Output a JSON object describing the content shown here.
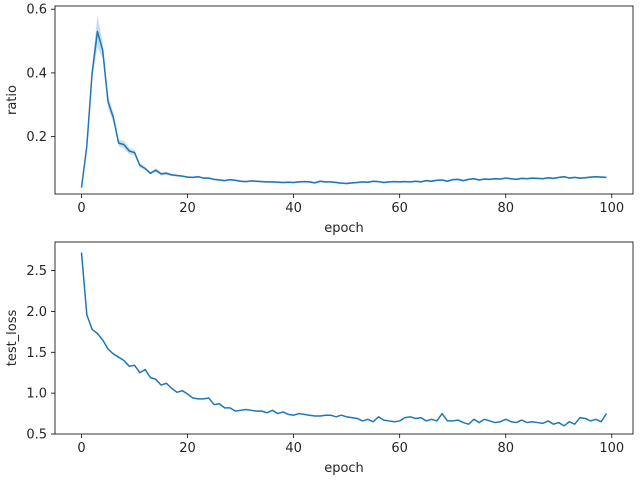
{
  "chart_data": [
    {
      "type": "line",
      "xlabel": "epoch",
      "ylabel": "ratio",
      "xlim": [
        -5,
        104
      ],
      "ylim": [
        0.02,
        0.61
      ],
      "xticks": [
        0,
        20,
        40,
        60,
        80,
        100
      ],
      "yticks": [
        0.2,
        0.4,
        0.6
      ],
      "ytick_labels": [
        "0.2",
        "0.4",
        "0.6"
      ],
      "grid": false,
      "legend": "none",
      "color": "#1f77b4",
      "band_color": "#1f77b4",
      "x": [
        0,
        1,
        2,
        3,
        4,
        5,
        6,
        7,
        8,
        9,
        10,
        11,
        12,
        13,
        14,
        15,
        16,
        17,
        18,
        19,
        20,
        21,
        22,
        23,
        24,
        25,
        26,
        27,
        28,
        29,
        30,
        31,
        32,
        33,
        34,
        35,
        36,
        37,
        38,
        39,
        40,
        41,
        42,
        43,
        44,
        45,
        46,
        47,
        48,
        49,
        50,
        51,
        52,
        53,
        54,
        55,
        56,
        57,
        58,
        59,
        60,
        61,
        62,
        63,
        64,
        65,
        66,
        67,
        68,
        69,
        70,
        71,
        72,
        73,
        74,
        75,
        76,
        77,
        78,
        79,
        80,
        81,
        82,
        83,
        84,
        85,
        86,
        87,
        88,
        89,
        90,
        91,
        92,
        93,
        94,
        95,
        96,
        97,
        98,
        99
      ],
      "y": [
        0.04,
        0.17,
        0.4,
        0.53,
        0.47,
        0.31,
        0.26,
        0.18,
        0.175,
        0.155,
        0.15,
        0.11,
        0.1,
        0.085,
        0.095,
        0.083,
        0.085,
        0.08,
        0.078,
        0.076,
        0.073,
        0.072,
        0.074,
        0.07,
        0.07,
        0.066,
        0.064,
        0.062,
        0.065,
        0.063,
        0.06,
        0.059,
        0.061,
        0.06,
        0.059,
        0.058,
        0.058,
        0.057,
        0.056,
        0.057,
        0.056,
        0.058,
        0.059,
        0.058,
        0.055,
        0.06,
        0.058,
        0.058,
        0.056,
        0.054,
        0.053,
        0.055,
        0.056,
        0.058,
        0.057,
        0.06,
        0.059,
        0.056,
        0.058,
        0.059,
        0.058,
        0.059,
        0.058,
        0.06,
        0.058,
        0.062,
        0.06,
        0.063,
        0.064,
        0.06,
        0.065,
        0.066,
        0.062,
        0.066,
        0.068,
        0.064,
        0.067,
        0.066,
        0.068,
        0.067,
        0.07,
        0.068,
        0.066,
        0.069,
        0.068,
        0.07,
        0.069,
        0.068,
        0.071,
        0.069,
        0.072,
        0.074,
        0.07,
        0.072,
        0.07,
        0.071,
        0.073,
        0.074,
        0.073,
        0.072
      ],
      "band": [
        0.005,
        0.01,
        0.02,
        0.05,
        0.025,
        0.02,
        0.015,
        0.01,
        0.012,
        0.01,
        0.008,
        0.006,
        0.005,
        0.004,
        0.006,
        0.005,
        0.005,
        0.004,
        0.003,
        0.003,
        0.003,
        0.003,
        0.003,
        0.003,
        0.003,
        0.003,
        0.003,
        0.003,
        0.003,
        0.003,
        0.003,
        0.003,
        0.003,
        0.003,
        0.003,
        0.003,
        0.003,
        0.003,
        0.003,
        0.003,
        0.003,
        0.003,
        0.003,
        0.003,
        0.003,
        0.003,
        0.003,
        0.003,
        0.003,
        0.003,
        0.003,
        0.003,
        0.003,
        0.003,
        0.003,
        0.003,
        0.003,
        0.003,
        0.003,
        0.003,
        0.003,
        0.003,
        0.003,
        0.003,
        0.003,
        0.003,
        0.003,
        0.003,
        0.003,
        0.003,
        0.003,
        0.003,
        0.003,
        0.003,
        0.003,
        0.003,
        0.003,
        0.003,
        0.003,
        0.003,
        0.003,
        0.003,
        0.003,
        0.003,
        0.003,
        0.003,
        0.003,
        0.003,
        0.003,
        0.003,
        0.003,
        0.003,
        0.003,
        0.003,
        0.003,
        0.003,
        0.003,
        0.003,
        0.003,
        0.003
      ]
    },
    {
      "type": "line",
      "xlabel": "epoch",
      "ylabel": "test_loss",
      "xlim": [
        -5,
        104
      ],
      "ylim": [
        0.5,
        2.85
      ],
      "xticks": [
        0,
        20,
        40,
        60,
        80,
        100
      ],
      "yticks": [
        0.5,
        1.0,
        1.5,
        2.0,
        2.5
      ],
      "ytick_labels": [
        "0.5",
        "1.0",
        "1.5",
        "2.0",
        "2.5"
      ],
      "grid": false,
      "legend": "none",
      "color": "#1f77b4",
      "x": [
        0,
        1,
        2,
        3,
        4,
        5,
        6,
        7,
        8,
        9,
        10,
        11,
        12,
        13,
        14,
        15,
        16,
        17,
        18,
        19,
        20,
        21,
        22,
        23,
        24,
        25,
        26,
        27,
        28,
        29,
        30,
        31,
        32,
        33,
        34,
        35,
        36,
        37,
        38,
        39,
        40,
        41,
        42,
        43,
        44,
        45,
        46,
        47,
        48,
        49,
        50,
        51,
        52,
        53,
        54,
        55,
        56,
        57,
        58,
        59,
        60,
        61,
        62,
        63,
        64,
        65,
        66,
        67,
        68,
        69,
        70,
        71,
        72,
        73,
        74,
        75,
        76,
        77,
        78,
        79,
        80,
        81,
        82,
        83,
        84,
        85,
        86,
        87,
        88,
        89,
        90,
        91,
        92,
        93,
        94,
        95,
        96,
        97,
        98,
        99
      ],
      "y": [
        2.72,
        1.96,
        1.78,
        1.73,
        1.65,
        1.54,
        1.48,
        1.44,
        1.4,
        1.33,
        1.34,
        1.25,
        1.29,
        1.19,
        1.17,
        1.1,
        1.12,
        1.06,
        1.01,
        1.03,
        0.99,
        0.94,
        0.93,
        0.93,
        0.94,
        0.86,
        0.87,
        0.82,
        0.82,
        0.78,
        0.79,
        0.8,
        0.79,
        0.78,
        0.78,
        0.76,
        0.79,
        0.75,
        0.77,
        0.74,
        0.73,
        0.75,
        0.74,
        0.73,
        0.72,
        0.72,
        0.73,
        0.73,
        0.71,
        0.73,
        0.71,
        0.7,
        0.69,
        0.66,
        0.68,
        0.65,
        0.71,
        0.67,
        0.66,
        0.65,
        0.66,
        0.7,
        0.71,
        0.69,
        0.7,
        0.66,
        0.68,
        0.66,
        0.75,
        0.66,
        0.66,
        0.67,
        0.64,
        0.62,
        0.68,
        0.64,
        0.68,
        0.66,
        0.64,
        0.65,
        0.68,
        0.65,
        0.64,
        0.67,
        0.64,
        0.65,
        0.64,
        0.63,
        0.66,
        0.62,
        0.64,
        0.6,
        0.65,
        0.62,
        0.7,
        0.69,
        0.66,
        0.68,
        0.65,
        0.75
      ]
    }
  ]
}
